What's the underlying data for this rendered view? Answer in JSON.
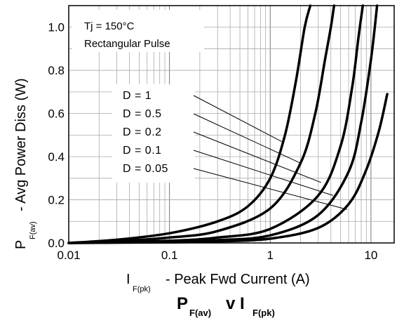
{
  "chart_data": {
    "type": "line",
    "title_main": "P",
    "title_sub1": "F(av)",
    "title_mid": "v I",
    "title_sub2": "F(pk)",
    "xlabel_main": "I",
    "xlabel_sub": "F(pk)",
    "xlabel_rest": "- Peak Fwd Current (A)",
    "ylabel_main": "P",
    "ylabel_sub": "F(av)",
    "ylabel_rest": "- Avg Power Diss (W)",
    "x_scale": "log",
    "xlim": [
      0.01,
      17
    ],
    "ylim": [
      0,
      1.1
    ],
    "x_ticks": [
      0.01,
      0.1,
      1,
      10
    ],
    "x_tick_labels": [
      "0.01",
      "0.1",
      "1",
      "10"
    ],
    "y_ticks": [
      0,
      0.2,
      0.4,
      0.6,
      0.8,
      1.0
    ],
    "y_tick_labels": [
      "0.0",
      "0.2",
      "0.4",
      "0.6",
      "0.8",
      "1.0"
    ],
    "grid": true,
    "annotation_lines": [
      "Tj = 150°C",
      "Rectangular Pulse"
    ],
    "series": [
      {
        "name": "D = 1",
        "x": [
          0.01,
          0.03,
          0.1,
          0.3,
          0.6,
          1.0,
          1.4,
          1.8,
          2.2,
          2.5
        ],
        "y": [
          0.0,
          0.015,
          0.045,
          0.1,
          0.17,
          0.3,
          0.5,
          0.75,
          1.0,
          1.1
        ]
      },
      {
        "name": "D = 0.5",
        "x": [
          0.01,
          0.03,
          0.1,
          0.3,
          1.0,
          2.0,
          2.8,
          3.5,
          4.0,
          4.3
        ],
        "y": [
          0.0,
          0.008,
          0.025,
          0.055,
          0.16,
          0.37,
          0.6,
          0.85,
          1.0,
          1.1
        ]
      },
      {
        "name": "D = 0.2",
        "x": [
          0.01,
          0.1,
          0.3,
          1.0,
          3.0,
          5.0,
          6.5,
          7.5,
          8.3
        ],
        "y": [
          0.0,
          0.01,
          0.025,
          0.065,
          0.22,
          0.45,
          0.72,
          0.95,
          1.1
        ]
      },
      {
        "name": "D = 0.1",
        "x": [
          0.01,
          0.1,
          0.3,
          1.0,
          3.0,
          6.0,
          8.0,
          10.0,
          11.5
        ],
        "y": [
          0.0,
          0.005,
          0.013,
          0.035,
          0.13,
          0.33,
          0.56,
          0.85,
          1.1
        ]
      },
      {
        "name": "D = 0.05",
        "x": [
          0.01,
          0.1,
          0.3,
          1.0,
          3.0,
          6.0,
          9.0,
          12.0,
          14.5
        ],
        "y": [
          0.0,
          0.003,
          0.007,
          0.02,
          0.07,
          0.18,
          0.34,
          0.52,
          0.69
        ]
      }
    ]
  }
}
